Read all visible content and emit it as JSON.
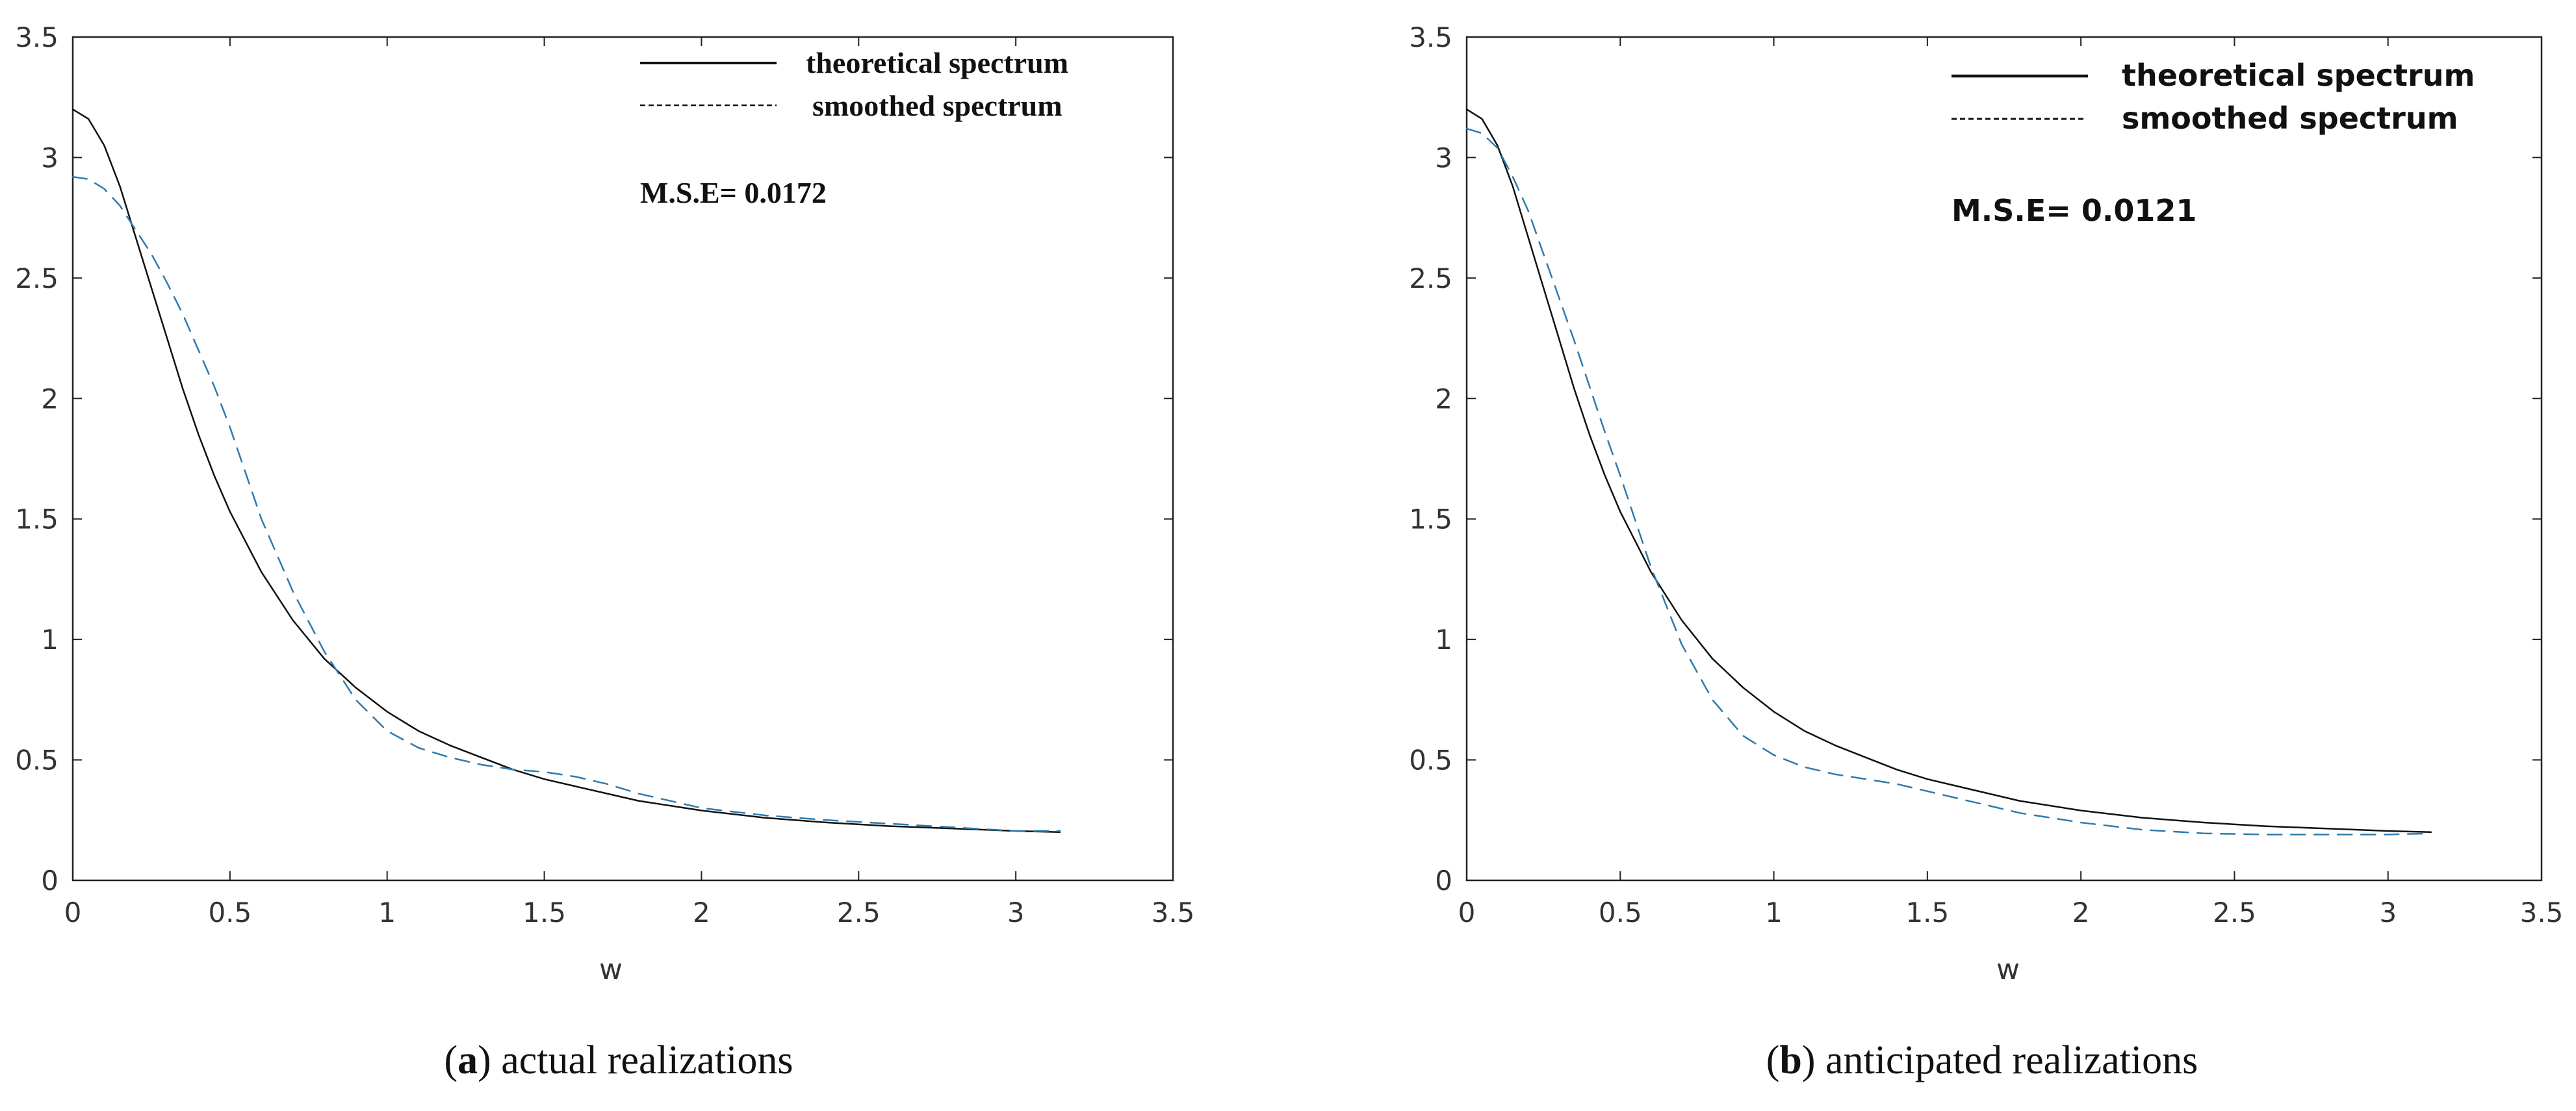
{
  "chart_data": [
    {
      "type": "line",
      "panel_letter": "a",
      "caption": "actual realizations",
      "xlabel": "w",
      "ylabel": "",
      "xlim": [
        0,
        3.5
      ],
      "ylim": [
        0,
        3.5
      ],
      "xticks": [
        "0",
        "0.5",
        "1",
        "1.5",
        "2",
        "2.5",
        "3",
        "3.5"
      ],
      "yticks": [
        "0",
        "0.5",
        "1",
        "1.5",
        "2",
        "2.5",
        "3",
        "3.5"
      ],
      "legend": {
        "position": "top-right",
        "entries": [
          "theoretical spectrum",
          "smoothed spectrum"
        ]
      },
      "annotation": "M.S.E= 0.0172",
      "series": [
        {
          "name": "theoretical spectrum",
          "style": "solid",
          "color": "#111111",
          "x": [
            0,
            0.05,
            0.1,
            0.15,
            0.2,
            0.25,
            0.3,
            0.35,
            0.4,
            0.45,
            0.5,
            0.6,
            0.7,
            0.8,
            0.9,
            1.0,
            1.1,
            1.2,
            1.3,
            1.4,
            1.5,
            1.6,
            1.7,
            1.8,
            2.0,
            2.2,
            2.4,
            2.6,
            2.8,
            3.0,
            3.14
          ],
          "values": [
            3.2,
            3.16,
            3.05,
            2.88,
            2.67,
            2.46,
            2.25,
            2.04,
            1.85,
            1.68,
            1.53,
            1.28,
            1.08,
            0.92,
            0.8,
            0.7,
            0.62,
            0.56,
            0.51,
            0.46,
            0.42,
            0.39,
            0.36,
            0.33,
            0.29,
            0.26,
            0.24,
            0.225,
            0.215,
            0.205,
            0.2
          ]
        },
        {
          "name": "smoothed spectrum",
          "style": "dashed",
          "color": "#2e7bab",
          "x": [
            0,
            0.05,
            0.1,
            0.15,
            0.2,
            0.25,
            0.3,
            0.35,
            0.4,
            0.45,
            0.5,
            0.6,
            0.7,
            0.8,
            0.9,
            1.0,
            1.1,
            1.2,
            1.3,
            1.4,
            1.5,
            1.6,
            1.7,
            1.8,
            2.0,
            2.2,
            2.4,
            2.6,
            2.8,
            3.0,
            3.14
          ],
          "values": [
            2.92,
            2.91,
            2.87,
            2.8,
            2.7,
            2.6,
            2.48,
            2.35,
            2.2,
            2.05,
            1.88,
            1.5,
            1.2,
            0.95,
            0.75,
            0.62,
            0.55,
            0.51,
            0.48,
            0.46,
            0.45,
            0.43,
            0.4,
            0.36,
            0.3,
            0.27,
            0.25,
            0.235,
            0.22,
            0.205,
            0.205
          ]
        }
      ]
    },
    {
      "type": "line",
      "panel_letter": "b",
      "caption": "anticipated realizations",
      "xlabel": "w",
      "ylabel": "",
      "xlim": [
        0,
        3.5
      ],
      "ylim": [
        0,
        3.5
      ],
      "xticks": [
        "0",
        "0.5",
        "1",
        "1.5",
        "2",
        "2.5",
        "3",
        "3.5"
      ],
      "yticks": [
        "0",
        "0.5",
        "1",
        "1.5",
        "2",
        "2.5",
        "3",
        "3.5"
      ],
      "legend": {
        "position": "top-right",
        "entries": [
          "theoretical spectrum",
          "smoothed spectrum"
        ]
      },
      "annotation": "M.S.E= 0.0121",
      "series": [
        {
          "name": "theoretical spectrum",
          "style": "solid",
          "color": "#111111",
          "x": [
            0,
            0.05,
            0.1,
            0.15,
            0.2,
            0.25,
            0.3,
            0.35,
            0.4,
            0.45,
            0.5,
            0.6,
            0.7,
            0.8,
            0.9,
            1.0,
            1.1,
            1.2,
            1.3,
            1.4,
            1.5,
            1.6,
            1.7,
            1.8,
            2.0,
            2.2,
            2.4,
            2.6,
            2.8,
            3.0,
            3.14
          ],
          "values": [
            3.2,
            3.16,
            3.05,
            2.88,
            2.67,
            2.46,
            2.25,
            2.04,
            1.85,
            1.68,
            1.53,
            1.28,
            1.08,
            0.92,
            0.8,
            0.7,
            0.62,
            0.56,
            0.51,
            0.46,
            0.42,
            0.39,
            0.36,
            0.33,
            0.29,
            0.26,
            0.24,
            0.225,
            0.215,
            0.205,
            0.2
          ]
        },
        {
          "name": "smoothed spectrum",
          "style": "dashed",
          "color": "#2e7bab",
          "x": [
            0,
            0.05,
            0.1,
            0.15,
            0.2,
            0.25,
            0.3,
            0.35,
            0.4,
            0.45,
            0.5,
            0.6,
            0.7,
            0.8,
            0.9,
            1.0,
            1.1,
            1.2,
            1.3,
            1.4,
            1.5,
            1.6,
            1.7,
            1.8,
            2.0,
            2.2,
            2.4,
            2.6,
            2.8,
            3.0,
            3.14
          ],
          "values": [
            3.12,
            3.1,
            3.04,
            2.92,
            2.78,
            2.6,
            2.42,
            2.24,
            2.05,
            1.86,
            1.68,
            1.3,
            0.98,
            0.75,
            0.6,
            0.52,
            0.47,
            0.44,
            0.42,
            0.4,
            0.37,
            0.34,
            0.31,
            0.28,
            0.24,
            0.21,
            0.195,
            0.19,
            0.19,
            0.19,
            0.195
          ]
        }
      ]
    }
  ]
}
